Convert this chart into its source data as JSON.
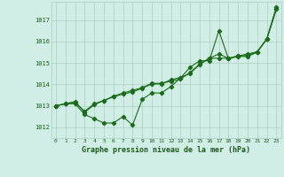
{
  "x": [
    0,
    1,
    2,
    3,
    4,
    5,
    6,
    7,
    8,
    9,
    10,
    11,
    12,
    13,
    14,
    15,
    16,
    17,
    18,
    19,
    20,
    21,
    22,
    23
  ],
  "series1": [
    1013.0,
    1013.1,
    1013.1,
    1012.6,
    1012.4,
    1012.2,
    1012.2,
    1012.5,
    1012.1,
    1013.3,
    1013.6,
    1013.6,
    1013.9,
    1014.3,
    1014.8,
    1015.1,
    1015.1,
    1016.5,
    1015.2,
    1015.3,
    1015.3,
    1015.5,
    1016.1,
    1017.5
  ],
  "series2": [
    1013.0,
    1013.1,
    1013.2,
    1012.7,
    1013.05,
    1013.25,
    1013.45,
    1013.6,
    1013.72,
    1013.85,
    1014.05,
    1014.05,
    1014.15,
    1014.25,
    1014.55,
    1014.95,
    1015.22,
    1015.42,
    1015.22,
    1015.32,
    1015.35,
    1015.52,
    1016.12,
    1017.52
  ],
  "series3": [
    1013.0,
    1013.1,
    1013.15,
    1012.75,
    1013.1,
    1013.25,
    1013.42,
    1013.55,
    1013.65,
    1013.82,
    1014.02,
    1014.02,
    1014.22,
    1014.32,
    1014.52,
    1014.92,
    1015.22,
    1015.22,
    1015.22,
    1015.32,
    1015.42,
    1015.52,
    1016.12,
    1017.62
  ],
  "ylim": [
    1011.5,
    1017.85
  ],
  "yticks": [
    1012,
    1013,
    1014,
    1015,
    1016,
    1017
  ],
  "xlim": [
    -0.5,
    23.5
  ],
  "xlabel": "Graphe pression niveau de la mer (hPa)",
  "line_color": "#1a6b1a",
  "dot_color": "#1a6b1a",
  "bg_color": "#d0eee5",
  "grid_color": "#aacfbf",
  "text_color": "#1a5a1a",
  "title_color": "#1a5a1a"
}
